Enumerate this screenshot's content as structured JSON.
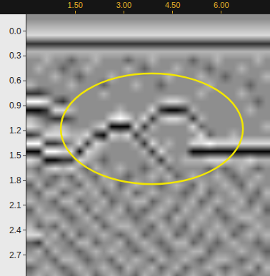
{
  "chart_data": {
    "type": "heatmap",
    "x": [
      0.125,
      0.375,
      0.625,
      0.875,
      1.125,
      1.375,
      1.625,
      1.875,
      2.125,
      2.375,
      2.625,
      2.875,
      3.125,
      3.375,
      3.625,
      3.875,
      4.125,
      4.375,
      4.625,
      4.875,
      5.125,
      5.375,
      5.625,
      5.875,
      6.125,
      6.375,
      6.625,
      6.875,
      7.125,
      7.375
    ],
    "y": [
      -0.15,
      -0.05,
      0.05,
      0.15,
      0.25,
      0.35,
      0.45,
      0.55,
      0.65,
      0.75,
      0.85,
      0.95,
      1.05,
      1.15,
      1.25,
      1.35,
      1.45,
      1.55,
      1.65,
      1.75,
      1.85,
      1.95,
      2.05,
      2.15,
      2.25,
      2.35,
      2.45,
      2.55,
      2.65,
      2.75,
      2.85,
      2.95
    ],
    "z": [
      [
        0,
        0,
        0,
        0,
        0,
        0,
        0,
        0,
        0,
        0,
        0,
        0,
        0,
        0,
        0,
        0,
        0,
        0,
        0,
        0,
        0,
        0,
        0,
        0,
        0,
        0,
        0,
        0,
        0,
        0
      ],
      [
        1,
        1,
        1,
        1,
        1,
        1,
        1,
        1,
        1,
        1,
        1,
        1,
        1,
        1,
        1,
        1,
        1,
        1,
        1,
        1,
        1,
        1,
        1,
        1,
        1,
        1,
        1,
        1,
        1,
        1
      ],
      [
        2,
        2,
        2,
        2,
        2,
        2,
        2,
        2,
        2,
        2,
        2,
        2,
        2,
        2,
        2,
        2,
        2,
        2,
        2,
        2,
        2,
        2,
        2,
        2,
        2,
        2,
        2,
        2,
        2,
        2
      ],
      [
        -2,
        -2,
        -2,
        -2,
        -2,
        -2,
        -2,
        -2,
        -2,
        -2,
        -2,
        -2,
        -2,
        -2,
        -2,
        -2,
        -2,
        -2,
        -2,
        -2,
        -2,
        -2,
        -2,
        -2,
        -2,
        -2,
        -2,
        -2,
        -2,
        -2
      ],
      [
        1,
        1,
        1,
        1,
        1,
        1,
        1,
        1,
        1,
        1,
        1,
        1,
        1,
        1,
        1,
        1,
        1,
        1,
        1,
        1,
        1,
        1,
        1,
        1,
        1,
        1,
        1,
        1,
        1,
        1
      ],
      [
        0,
        0,
        1,
        0,
        0,
        -1,
        0,
        0,
        1,
        0,
        0,
        0,
        -1,
        0,
        0,
        1,
        0,
        0,
        0,
        0,
        -1,
        0,
        0,
        1,
        0,
        0,
        0,
        0,
        1,
        0
      ],
      [
        0,
        1,
        0,
        0,
        -1,
        0,
        0,
        1,
        0,
        0,
        0,
        0,
        1,
        0,
        -1,
        0,
        0,
        0,
        1,
        0,
        0,
        0,
        -1,
        0,
        0,
        0,
        1,
        0,
        0,
        0
      ],
      [
        0,
        0,
        0,
        1,
        0,
        0,
        -1,
        0,
        0,
        0,
        1,
        0,
        0,
        0,
        0,
        0,
        0,
        1,
        0,
        0,
        0,
        1,
        0,
        0,
        -1,
        0,
        0,
        0,
        0,
        1
      ],
      [
        1,
        0,
        0,
        0,
        0,
        1,
        0,
        0,
        0,
        -1,
        0,
        0,
        0,
        1,
        0,
        0,
        -1,
        0,
        0,
        0,
        0,
        0,
        1,
        0,
        0,
        0,
        0,
        -1,
        0,
        0
      ],
      [
        -2,
        -2,
        -1,
        0,
        0,
        0,
        0,
        0,
        0,
        1,
        0,
        0,
        0,
        0,
        0,
        0,
        0,
        0,
        0,
        0,
        0,
        1,
        0,
        0,
        0,
        0,
        1,
        0,
        0,
        0
      ],
      [
        3,
        3,
        2,
        -1,
        -2,
        0,
        0,
        0,
        0,
        0,
        0,
        0,
        0,
        0,
        0,
        0,
        1,
        2,
        2,
        1,
        0,
        0,
        0,
        0,
        0,
        0,
        0,
        0,
        -1,
        0
      ],
      [
        -3,
        -3,
        -2,
        2,
        2,
        1,
        0,
        0,
        0,
        0,
        0,
        1,
        0,
        0,
        0,
        2,
        -2,
        -3,
        -3,
        -2,
        1,
        0,
        0,
        0,
        0,
        0,
        0,
        1,
        0,
        0
      ],
      [
        1,
        0,
        -1,
        -2,
        -2,
        -1,
        0,
        0,
        0,
        0,
        2,
        3,
        2,
        0,
        2,
        -2,
        1,
        2,
        2,
        1,
        -2,
        1,
        0,
        0,
        0,
        0,
        0,
        0,
        0,
        0
      ],
      [
        2,
        1,
        0,
        1,
        1,
        0,
        0,
        0,
        1,
        2,
        -3,
        -3,
        -3,
        2,
        -2,
        1,
        0,
        0,
        0,
        0,
        2,
        -1,
        0,
        0,
        0,
        0,
        0,
        0,
        0,
        1
      ],
      [
        -2,
        -1,
        2,
        2,
        2,
        1,
        1,
        2,
        -2,
        -3,
        2,
        1,
        2,
        -2,
        1,
        0,
        0,
        0,
        0,
        0,
        0,
        2,
        -1,
        0,
        0,
        1,
        0,
        0,
        0,
        0
      ],
      [
        3,
        3,
        -2,
        -2,
        -1,
        0,
        2,
        -2,
        2,
        1,
        0,
        0,
        0,
        1,
        -2,
        2,
        0,
        1,
        0,
        0,
        2,
        2,
        3,
        2,
        2,
        2,
        2,
        2,
        2,
        2
      ],
      [
        -3,
        -3,
        3,
        3,
        2,
        2,
        -3,
        2,
        1,
        0,
        0,
        0,
        0,
        0,
        1,
        -2,
        2,
        0,
        0,
        0,
        -3,
        -3,
        -3,
        -3,
        -3,
        -3,
        -3,
        -3,
        -3,
        -3
      ],
      [
        2,
        1,
        -3,
        -3,
        -2,
        -2,
        2,
        1,
        0,
        -1,
        0,
        0,
        0,
        0,
        0,
        1,
        -2,
        1,
        0,
        1,
        1,
        1,
        2,
        2,
        2,
        1,
        1,
        2,
        1,
        1
      ],
      [
        0,
        -1,
        1,
        2,
        1,
        2,
        0,
        -1,
        1,
        0,
        0,
        1,
        0,
        0,
        -1,
        0,
        1,
        -1,
        0,
        0,
        0,
        0,
        -1,
        0,
        -1,
        0,
        1,
        0,
        -1,
        0
      ],
      [
        1,
        0,
        0,
        -1,
        0,
        -1,
        1,
        0,
        -1,
        1,
        0,
        0,
        -1,
        0,
        0,
        1,
        0,
        1,
        -1,
        0,
        1,
        0,
        0,
        1,
        0,
        -1,
        0,
        0,
        1,
        0
      ],
      [
        -1,
        1,
        -1,
        0,
        1,
        0,
        -1,
        1,
        0,
        0,
        1,
        -1,
        0,
        1,
        0,
        0,
        -1,
        0,
        1,
        0,
        -1,
        1,
        0,
        0,
        1,
        0,
        -1,
        1,
        0,
        0
      ],
      [
        0,
        -1,
        1,
        1,
        -1,
        0,
        1,
        0,
        1,
        -1,
        0,
        0,
        1,
        -1,
        0,
        1,
        0,
        0,
        0,
        -1,
        0,
        1,
        -1,
        0,
        0,
        1,
        0,
        0,
        -1,
        1
      ],
      [
        1,
        0,
        0,
        -1,
        1,
        1,
        -1,
        0,
        0,
        1,
        -1,
        0,
        0,
        1,
        1,
        -1,
        0,
        1,
        0,
        0,
        1,
        -1,
        0,
        1,
        0,
        0,
        1,
        -1,
        0,
        0
      ],
      [
        -1,
        1,
        0,
        0,
        -1,
        0,
        1,
        -1,
        1,
        0,
        0,
        1,
        -1,
        0,
        -1,
        0,
        1,
        0,
        -1,
        1,
        0,
        0,
        1,
        -1,
        0,
        1,
        0,
        0,
        1,
        -1
      ],
      [
        0,
        0,
        1,
        1,
        0,
        -1,
        0,
        1,
        -1,
        0,
        1,
        0,
        0,
        -1,
        0,
        1,
        0,
        -1,
        1,
        0,
        0,
        1,
        0,
        0,
        -1,
        0,
        1,
        1,
        0,
        0
      ],
      [
        1,
        -1,
        0,
        -1,
        1,
        0,
        0,
        0,
        1,
        -1,
        0,
        1,
        1,
        0,
        0,
        -1,
        1,
        0,
        0,
        -1,
        1,
        0,
        0,
        1,
        0,
        0,
        -1,
        0,
        1,
        0
      ],
      [
        2,
        2,
        0,
        1,
        -1,
        1,
        -1,
        0,
        0,
        1,
        0,
        -1,
        0,
        1,
        -1,
        0,
        0,
        1,
        -1,
        0,
        0,
        -1,
        1,
        0,
        1,
        -1,
        0,
        1,
        0,
        1
      ],
      [
        -1,
        -2,
        1,
        0,
        0,
        -1,
        1,
        1,
        -1,
        0,
        0,
        1,
        -1,
        0,
        1,
        0,
        -1,
        0,
        1,
        1,
        -1,
        0,
        0,
        -1,
        0,
        1,
        0,
        0,
        -1,
        0
      ],
      [
        0,
        1,
        -1,
        1,
        0,
        0,
        -1,
        0,
        1,
        0,
        1,
        0,
        0,
        -1,
        0,
        1,
        0,
        -1,
        0,
        0,
        1,
        1,
        -1,
        0,
        0,
        0,
        1,
        0,
        0,
        -1
      ],
      [
        1,
        0,
        0,
        -1,
        1,
        1,
        0,
        -1,
        0,
        0,
        -1,
        1,
        0,
        1,
        0,
        -1,
        1,
        0,
        0,
        1,
        0,
        -1,
        0,
        1,
        1,
        0,
        -1,
        0,
        1,
        0
      ],
      [
        -1,
        0,
        1,
        0,
        -1,
        0,
        1,
        0,
        0,
        1,
        0,
        -1,
        1,
        0,
        0,
        1,
        -1,
        0,
        1,
        -1,
        0,
        0,
        1,
        0,
        -1,
        0,
        0,
        1,
        -1,
        1
      ],
      [
        0,
        1,
        0,
        1,
        0,
        -1,
        0,
        1,
        -1,
        0,
        1,
        0,
        0,
        -1,
        1,
        0,
        0,
        1,
        -1,
        0,
        1,
        0,
        -1,
        1,
        0,
        1,
        0,
        -1,
        0,
        0
      ]
    ],
    "zlim": [
      -3,
      3
    ],
    "xlim": [
      0,
      7.5
    ],
    "ylim": [
      -0.2,
      2.95
    ],
    "xticks": [
      {
        "value": 1.5,
        "label": "1.50"
      },
      {
        "value": 3,
        "label": "3.00"
      },
      {
        "value": 4.5,
        "label": "4.50"
      },
      {
        "value": 6,
        "label": "6.00"
      }
    ],
    "yticks": [
      {
        "value": 0,
        "label": "0.0"
      },
      0.3,
      0.6,
      0.9,
      1.2,
      1.5,
      1.8,
      2.1,
      2.4,
      2.7
    ]
  }
}
